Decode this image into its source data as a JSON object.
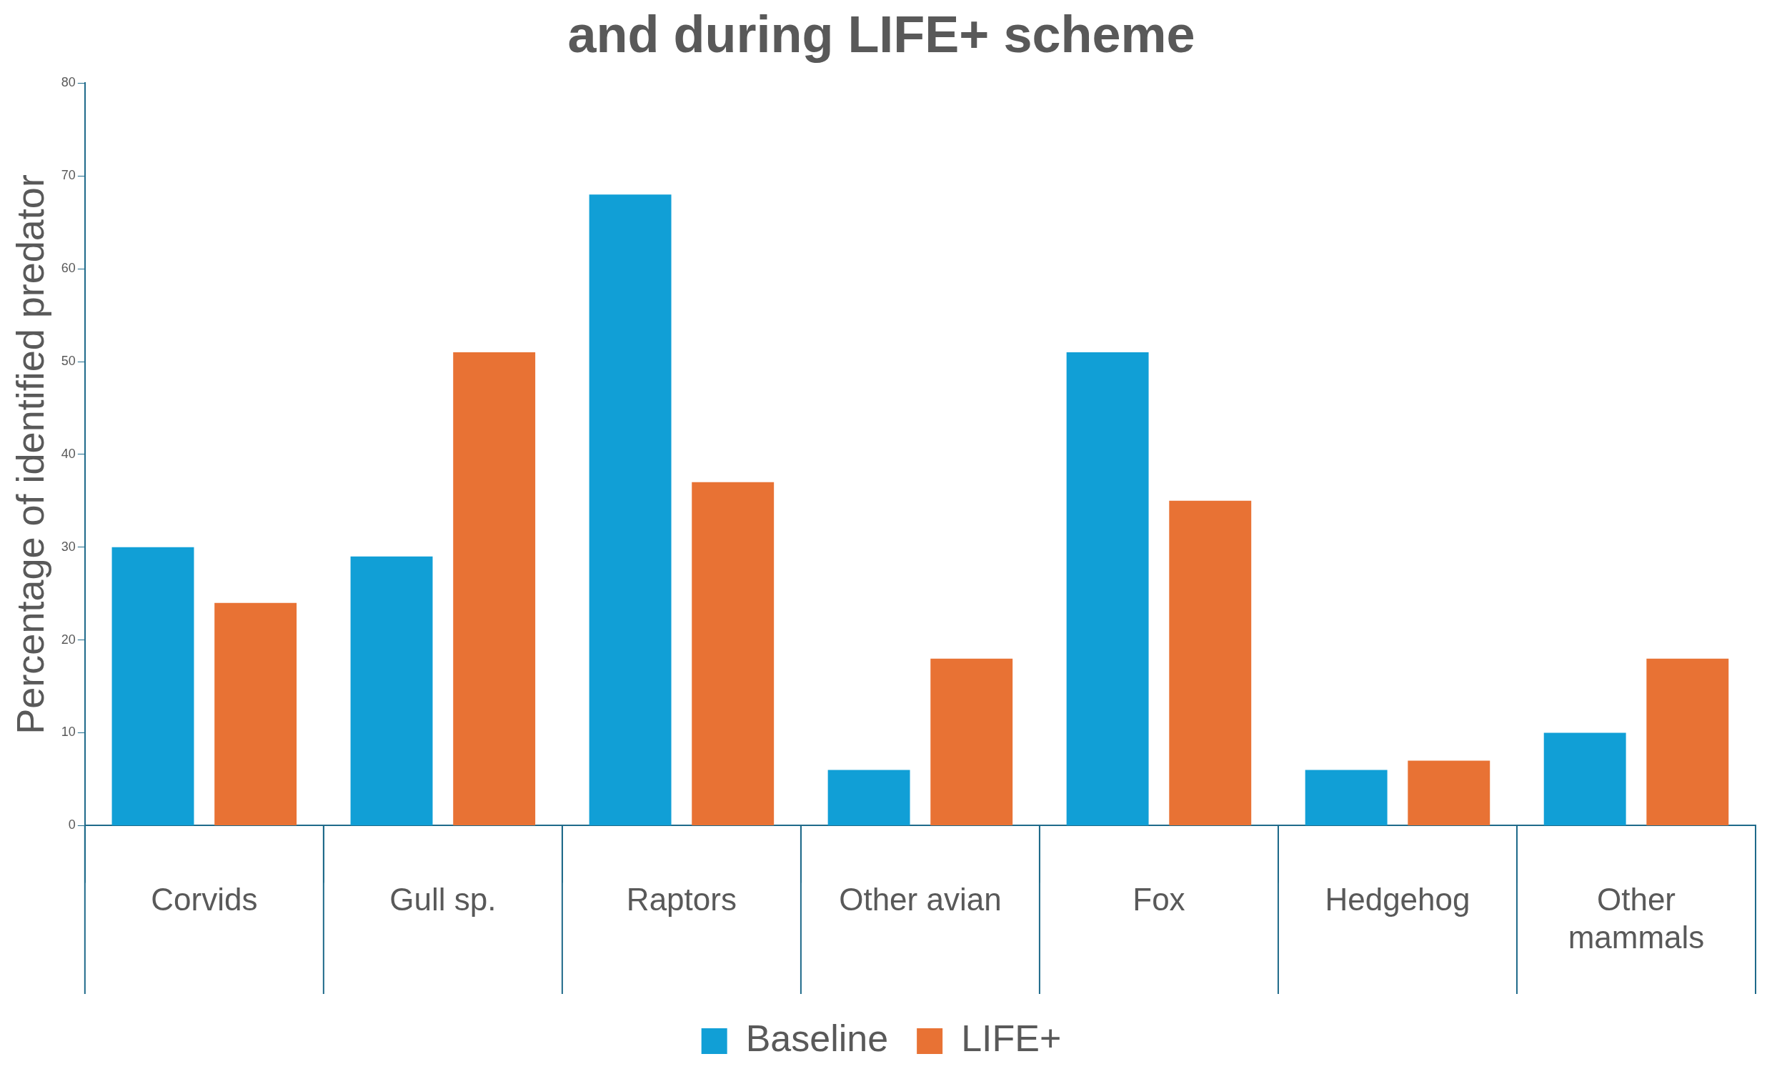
{
  "chart_data": {
    "type": "bar",
    "title": "and during LIFE+ scheme",
    "ylabel": "Percentage of identified predator",
    "categories": [
      "Corvids",
      "Gull sp.",
      "Raptors",
      "Other avian",
      "Fox",
      "Hedgehog",
      "Other mammals"
    ],
    "series": [
      {
        "name": "Baseline",
        "color": "#119fd6",
        "values": [
          30,
          29,
          68,
          6,
          51,
          6,
          10
        ]
      },
      {
        "name": "LIFE+",
        "color": "#e87234",
        "values": [
          24,
          51,
          37,
          18,
          35,
          7,
          18
        ]
      }
    ],
    "ylim": [
      0,
      80
    ],
    "yticks": [
      0,
      10,
      20,
      30,
      40,
      50,
      60,
      70,
      80
    ],
    "grid": false,
    "legend": "bottom"
  }
}
